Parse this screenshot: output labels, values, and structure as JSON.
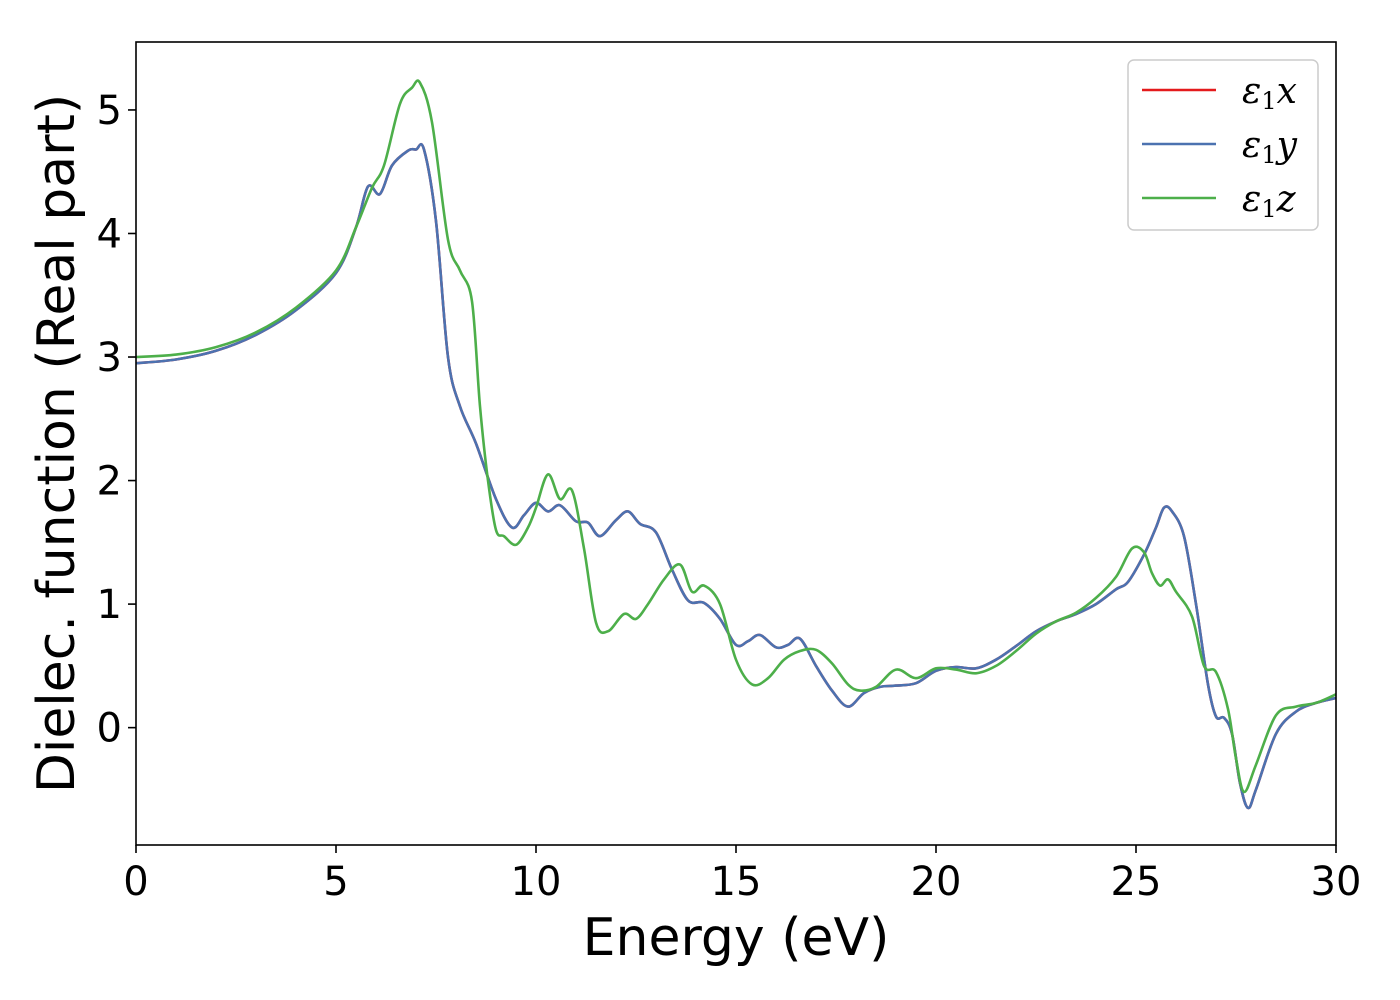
{
  "chart_data": {
    "type": "line",
    "xlabel": "Energy (eV)",
    "ylabel": "Dielec. function (Real part)",
    "xlim": [
      0,
      30
    ],
    "ylim": [
      -0.95,
      5.55
    ],
    "xticks": [
      0,
      5,
      10,
      15,
      20,
      25,
      30
    ],
    "yticks": [
      0,
      1,
      2,
      3,
      4,
      5
    ],
    "grid": false,
    "legend_position": "top-right",
    "series": [
      {
        "name": "ε1x",
        "name_base": "ε",
        "name_sub": "1",
        "name_var": "x",
        "color": "#e41a1c",
        "x": [
          0,
          1,
          2,
          3,
          4,
          5,
          5.5,
          5.8,
          6.1,
          6.4,
          6.8,
          7.0,
          7.2,
          7.5,
          7.8,
          8.1,
          8.5,
          9.0,
          9.4,
          9.7,
          10.0,
          10.3,
          10.6,
          11.0,
          11.3,
          11.6,
          12.0,
          12.3,
          12.6,
          13.0,
          13.4,
          13.8,
          14.2,
          14.6,
          15.0,
          15.3,
          15.6,
          16.0,
          16.3,
          16.6,
          17.0,
          17.4,
          17.8,
          18.2,
          18.6,
          19.0,
          19.5,
          20.0,
          20.5,
          21.0,
          21.5,
          22.0,
          22.5,
          23.0,
          23.5,
          24.0,
          24.5,
          24.8,
          25.2,
          25.5,
          25.7,
          25.9,
          26.2,
          26.5,
          26.8,
          27.0,
          27.2,
          27.4,
          27.6,
          27.8,
          28.0,
          28.5,
          29.0,
          29.5,
          30.0
        ],
        "y": [
          2.95,
          2.98,
          3.05,
          3.18,
          3.38,
          3.68,
          4.05,
          4.38,
          4.32,
          4.55,
          4.67,
          4.68,
          4.68,
          4.1,
          3.0,
          2.6,
          2.3,
          1.85,
          1.62,
          1.72,
          1.82,
          1.75,
          1.8,
          1.67,
          1.66,
          1.55,
          1.68,
          1.75,
          1.65,
          1.58,
          1.28,
          1.03,
          1.01,
          0.88,
          0.67,
          0.7,
          0.75,
          0.65,
          0.67,
          0.72,
          0.5,
          0.3,
          0.17,
          0.28,
          0.33,
          0.34,
          0.36,
          0.46,
          0.49,
          0.48,
          0.55,
          0.66,
          0.78,
          0.86,
          0.92,
          1.0,
          1.12,
          1.18,
          1.4,
          1.62,
          1.78,
          1.75,
          1.55,
          1.0,
          0.35,
          0.09,
          0.08,
          -0.05,
          -0.45,
          -0.65,
          -0.5,
          -0.05,
          0.13,
          0.2,
          0.24
        ]
      },
      {
        "name": "ε1y",
        "name_base": "ε",
        "name_sub": "1",
        "name_var": "y",
        "color": "#4c72b0",
        "x": [
          0,
          1,
          2,
          3,
          4,
          5,
          5.5,
          5.8,
          6.1,
          6.4,
          6.8,
          7.0,
          7.2,
          7.5,
          7.8,
          8.1,
          8.5,
          9.0,
          9.4,
          9.7,
          10.0,
          10.3,
          10.6,
          11.0,
          11.3,
          11.6,
          12.0,
          12.3,
          12.6,
          13.0,
          13.4,
          13.8,
          14.2,
          14.6,
          15.0,
          15.3,
          15.6,
          16.0,
          16.3,
          16.6,
          17.0,
          17.4,
          17.8,
          18.2,
          18.6,
          19.0,
          19.5,
          20.0,
          20.5,
          21.0,
          21.5,
          22.0,
          22.5,
          23.0,
          23.5,
          24.0,
          24.5,
          24.8,
          25.2,
          25.5,
          25.7,
          25.9,
          26.2,
          26.5,
          26.8,
          27.0,
          27.2,
          27.4,
          27.6,
          27.8,
          28.0,
          28.5,
          29.0,
          29.5,
          30.0
        ],
        "y": [
          2.95,
          2.98,
          3.05,
          3.18,
          3.38,
          3.68,
          4.05,
          4.38,
          4.32,
          4.55,
          4.67,
          4.68,
          4.68,
          4.1,
          3.0,
          2.6,
          2.3,
          1.85,
          1.62,
          1.72,
          1.82,
          1.75,
          1.8,
          1.67,
          1.66,
          1.55,
          1.68,
          1.75,
          1.65,
          1.58,
          1.28,
          1.03,
          1.01,
          0.88,
          0.67,
          0.7,
          0.75,
          0.65,
          0.67,
          0.72,
          0.5,
          0.3,
          0.17,
          0.28,
          0.33,
          0.34,
          0.36,
          0.46,
          0.49,
          0.48,
          0.55,
          0.66,
          0.78,
          0.86,
          0.92,
          1.0,
          1.12,
          1.18,
          1.4,
          1.62,
          1.78,
          1.75,
          1.55,
          1.0,
          0.35,
          0.09,
          0.08,
          -0.05,
          -0.45,
          -0.65,
          -0.5,
          -0.05,
          0.13,
          0.2,
          0.24
        ]
      },
      {
        "name": "ε1z",
        "name_base": "ε",
        "name_sub": "1",
        "name_var": "z",
        "color": "#4daf4a",
        "x": [
          0,
          1,
          2,
          3,
          4,
          5,
          5.5,
          5.9,
          6.2,
          6.6,
          6.9,
          7.1,
          7.4,
          7.8,
          8.1,
          8.4,
          8.6,
          8.8,
          9.0,
          9.2,
          9.5,
          9.8,
          10.0,
          10.3,
          10.6,
          10.9,
          11.2,
          11.5,
          11.8,
          12.2,
          12.5,
          12.8,
          13.2,
          13.6,
          13.9,
          14.2,
          14.6,
          15.0,
          15.4,
          15.8,
          16.2,
          16.6,
          17.0,
          17.4,
          17.8,
          18.1,
          18.5,
          19.0,
          19.5,
          20.0,
          20.5,
          21.0,
          21.5,
          22.0,
          22.5,
          23.0,
          23.5,
          24.0,
          24.5,
          24.9,
          25.2,
          25.4,
          25.6,
          25.8,
          26.0,
          26.4,
          26.7,
          27.0,
          27.3,
          27.5,
          27.7,
          28.0,
          28.5,
          29.0,
          29.5,
          30.0
        ],
        "y": [
          3.0,
          3.02,
          3.08,
          3.2,
          3.4,
          3.7,
          4.05,
          4.37,
          4.55,
          5.05,
          5.18,
          5.22,
          4.9,
          3.95,
          3.7,
          3.45,
          2.6,
          2.0,
          1.6,
          1.55,
          1.48,
          1.62,
          1.78,
          2.05,
          1.85,
          1.92,
          1.45,
          0.85,
          0.78,
          0.92,
          0.88,
          1.0,
          1.2,
          1.32,
          1.1,
          1.15,
          1.0,
          0.55,
          0.35,
          0.4,
          0.55,
          0.62,
          0.63,
          0.52,
          0.35,
          0.3,
          0.33,
          0.47,
          0.4,
          0.48,
          0.47,
          0.44,
          0.5,
          0.62,
          0.76,
          0.86,
          0.93,
          1.05,
          1.22,
          1.45,
          1.42,
          1.25,
          1.15,
          1.2,
          1.1,
          0.9,
          0.5,
          0.45,
          0.15,
          -0.25,
          -0.52,
          -0.3,
          0.1,
          0.17,
          0.2,
          0.27
        ]
      }
    ]
  }
}
